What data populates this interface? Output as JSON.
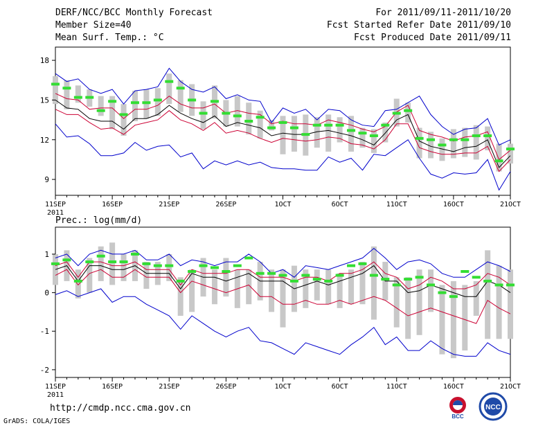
{
  "header": {
    "title": "DERF/NCC/BCC Monthly Forecast",
    "member_size": "Member Size=40",
    "variable_temp": "Mean Surf. Temp.: °C",
    "forecast_period": "For 2011/09/11-2011/10/20",
    "started_date": "Fcst Started Refer Date 2011/09/10",
    "produced_date": "Fcst Produced Date 2011/09/11"
  },
  "footer": {
    "url": "http://cmdp.ncc.cma.gov.cn",
    "credit": "GrADS: COLA/IGES",
    "logo_left_text": "BCC",
    "logo_right_text": "NCC"
  },
  "colors": {
    "max_min": "#0000cc",
    "spread": "#cc0033",
    "mean": "#000000",
    "box": "#c8c8c8",
    "green_mark": "#33dd33"
  },
  "chart_data": [
    {
      "type": "line",
      "title": "Mean Surf. Temp.: °C",
      "x_tick_labels": [
        "11SEP",
        "16SEP",
        "21SEP",
        "26SEP",
        "1OCT",
        "6OCT",
        "11OCT",
        "16OCT",
        "21OCT"
      ],
      "x_year_label": "2011",
      "x_range": [
        0,
        40
      ],
      "ylim": [
        7.8,
        19.0
      ],
      "y_ticks": [
        9,
        12,
        15,
        18
      ],
      "series": [
        {
          "name": "max",
          "values": [
            17.0,
            16.4,
            16.6,
            15.8,
            15.5,
            15.8,
            14.7,
            15.7,
            15.8,
            16.0,
            17.4,
            16.4,
            15.8,
            15.6,
            16.0,
            15.1,
            15.4,
            15.0,
            14.9,
            13.3,
            14.4,
            14.0,
            14.3,
            13.5,
            14.3,
            14.2,
            13.5,
            13.1,
            13.0,
            14.2,
            14.3,
            14.8,
            15.3,
            13.9,
            13.0,
            12.4,
            12.8,
            12.9,
            13.6,
            11.6,
            12.0
          ]
        },
        {
          "name": "upper",
          "values": [
            15.5,
            15.1,
            15.0,
            14.3,
            14.4,
            14.4,
            13.6,
            14.3,
            14.3,
            14.6,
            15.3,
            14.7,
            14.4,
            14.4,
            14.7,
            14.0,
            14.2,
            14.0,
            13.9,
            13.2,
            13.4,
            13.2,
            13.2,
            13.1,
            13.5,
            13.3,
            13.1,
            12.8,
            12.6,
            13.0,
            14.1,
            14.6,
            12.7,
            12.4,
            12.2,
            11.9,
            12.2,
            12.3,
            12.6,
            10.5,
            11.2
          ]
        },
        {
          "name": "mean",
          "values": [
            15.0,
            14.4,
            14.3,
            13.6,
            13.4,
            13.4,
            12.8,
            13.6,
            13.6,
            13.9,
            14.6,
            14.0,
            13.6,
            13.3,
            13.8,
            13.0,
            13.3,
            13.1,
            12.9,
            12.3,
            12.5,
            12.4,
            12.4,
            12.6,
            12.7,
            12.5,
            12.3,
            12.0,
            11.6,
            12.5,
            13.5,
            13.9,
            11.9,
            11.5,
            11.3,
            11.1,
            11.4,
            11.5,
            12.0,
            9.9,
            10.8
          ]
        },
        {
          "name": "lower",
          "values": [
            14.3,
            13.9,
            13.9,
            13.3,
            12.8,
            12.9,
            12.4,
            13.1,
            13.3,
            13.5,
            14.2,
            13.5,
            13.2,
            12.7,
            13.3,
            12.5,
            12.7,
            12.5,
            12.1,
            11.8,
            12.1,
            12.0,
            11.9,
            12.0,
            12.2,
            12.1,
            11.7,
            11.6,
            11.3,
            12.0,
            13.2,
            13.2,
            11.4,
            11.1,
            10.9,
            10.9,
            11.0,
            11.0,
            11.5,
            9.6,
            10.5
          ]
        },
        {
          "name": "min",
          "values": [
            13.2,
            12.2,
            12.3,
            11.7,
            10.8,
            10.8,
            11.0,
            11.8,
            11.2,
            11.5,
            11.6,
            10.7,
            11.0,
            9.8,
            10.4,
            10.1,
            10.4,
            10.1,
            10.3,
            9.9,
            9.8,
            9.8,
            9.7,
            9.7,
            10.7,
            10.3,
            10.6,
            9.7,
            10.9,
            10.8,
            11.4,
            12.0,
            10.6,
            9.4,
            9.1,
            9.5,
            9.4,
            9.5,
            10.5,
            8.2,
            9.6
          ]
        }
      ],
      "box_ranges": [
        [
          14.7,
          16.8
        ],
        [
          14.3,
          16.5
        ],
        [
          14.8,
          16.1
        ],
        [
          14.5,
          15.8
        ],
        [
          13.8,
          15.3
        ],
        [
          12.8,
          15.3
        ],
        [
          12.3,
          14.7
        ],
        [
          13.4,
          15.7
        ],
        [
          13.6,
          15.8
        ],
        [
          13.8,
          15.9
        ],
        [
          14.7,
          17.0
        ],
        [
          14.1,
          16.5
        ],
        [
          13.8,
          16.2
        ],
        [
          12.8,
          14.9
        ],
        [
          13.6,
          16.1
        ],
        [
          13.0,
          15.0
        ],
        [
          13.0,
          15.3
        ],
        [
          12.4,
          14.8
        ],
        [
          12.1,
          14.2
        ],
        [
          12.7,
          13.5
        ],
        [
          10.9,
          13.8
        ],
        [
          11.1,
          13.8
        ],
        [
          10.8,
          13.9
        ],
        [
          11.4,
          13.7
        ],
        [
          11.1,
          13.9
        ],
        [
          11.8,
          13.7
        ],
        [
          11.1,
          13.8
        ],
        [
          11.4,
          12.9
        ],
        [
          11.0,
          12.8
        ],
        [
          11.8,
          13.3
        ],
        [
          13.0,
          15.1
        ],
        [
          13.3,
          14.8
        ],
        [
          10.6,
          12.9
        ],
        [
          10.6,
          12.6
        ],
        [
          10.4,
          12.1
        ],
        [
          10.6,
          12.8
        ],
        [
          10.7,
          12.9
        ],
        [
          10.5,
          13.1
        ],
        [
          11.2,
          13.0
        ],
        [
          9.6,
          11.7
        ],
        [
          10.2,
          11.7
        ]
      ],
      "green_marks": [
        16.2,
        15.9,
        15.2,
        15.2,
        14.2,
        14.9,
        13.9,
        14.8,
        14.8,
        15.0,
        16.4,
        15.9,
        15.0,
        14.0,
        14.9,
        14.0,
        13.8,
        13.4,
        13.7,
        12.9,
        13.3,
        12.9,
        12.4,
        13.1,
        13.1,
        13.1,
        12.7,
        12.5,
        12.3,
        13.1,
        14.0,
        14.2,
        12.1,
        12.0,
        11.6,
        12.0,
        12.0,
        12.3,
        12.3,
        10.4,
        11.3
      ]
    },
    {
      "type": "line",
      "title": "Prec.: log(mm/d)",
      "x_tick_labels": [
        "11SEP",
        "16SEP",
        "21SEP",
        "26SEP",
        "1OCT",
        "6OCT",
        "11OCT",
        "16OCT",
        "21OCT"
      ],
      "x_year_label": "2011",
      "x_range": [
        0,
        40
      ],
      "ylim": [
        -2.2,
        1.7
      ],
      "y_ticks": [
        -2,
        -1,
        0,
        1
      ],
      "series": [
        {
          "name": "max",
          "values": [
            0.9,
            1.0,
            0.7,
            1.0,
            1.1,
            1.0,
            1.0,
            1.1,
            0.85,
            0.85,
            1.0,
            0.7,
            0.85,
            0.8,
            0.7,
            0.8,
            0.8,
            1.0,
            0.8,
            0.5,
            0.6,
            0.4,
            0.7,
            0.65,
            0.6,
            0.7,
            0.8,
            0.9,
            1.15,
            0.9,
            0.6,
            0.8,
            0.85,
            0.75,
            0.5,
            0.4,
            0.4,
            0.6,
            0.8,
            0.7,
            0.55
          ]
        },
        {
          "name": "upper",
          "values": [
            0.7,
            0.8,
            0.4,
            0.8,
            0.8,
            0.7,
            0.7,
            0.8,
            0.6,
            0.6,
            0.6,
            0.2,
            0.6,
            0.5,
            0.5,
            0.5,
            0.6,
            0.6,
            0.4,
            0.4,
            0.4,
            0.3,
            0.4,
            0.4,
            0.3,
            0.5,
            0.5,
            0.6,
            0.8,
            0.5,
            0.4,
            0.1,
            0.2,
            0.4,
            0.3,
            0.1,
            0.1,
            0.2,
            0.5,
            0.4,
            0.2
          ]
        },
        {
          "name": "mean",
          "values": [
            0.6,
            0.7,
            0.3,
            0.7,
            0.7,
            0.6,
            0.6,
            0.7,
            0.5,
            0.5,
            0.5,
            0.1,
            0.5,
            0.4,
            0.4,
            0.3,
            0.4,
            0.5,
            0.3,
            0.3,
            0.3,
            0.1,
            0.2,
            0.3,
            0.2,
            0.3,
            0.4,
            0.5,
            0.7,
            0.3,
            0.3,
            0.0,
            0.05,
            0.2,
            0.1,
            0.0,
            -0.1,
            -0.1,
            0.3,
            0.2,
            0.0
          ]
        },
        {
          "name": "lower",
          "values": [
            0.45,
            0.6,
            0.2,
            0.5,
            0.6,
            0.4,
            0.4,
            0.6,
            0.4,
            0.4,
            0.4,
            0.0,
            0.3,
            0.2,
            0.1,
            0.0,
            0.1,
            0.2,
            -0.1,
            -0.1,
            -0.3,
            -0.3,
            -0.2,
            -0.3,
            -0.3,
            -0.2,
            -0.3,
            -0.2,
            -0.1,
            -0.2,
            -0.4,
            -0.6,
            -0.5,
            -0.4,
            -0.5,
            -0.6,
            -0.7,
            -0.8,
            -0.2,
            -0.4,
            -0.55
          ]
        },
        {
          "name": "min",
          "values": [
            -0.05,
            0.05,
            -0.1,
            0.0,
            0.1,
            -0.25,
            -0.1,
            -0.1,
            -0.3,
            -0.45,
            -0.6,
            -0.95,
            -0.6,
            -0.8,
            -1.0,
            -1.15,
            -1.0,
            -0.9,
            -1.25,
            -1.3,
            -1.45,
            -1.6,
            -1.3,
            -1.4,
            -1.5,
            -1.6,
            -1.35,
            -1.15,
            -0.9,
            -1.35,
            -1.15,
            -1.5,
            -1.5,
            -1.25,
            -1.45,
            -1.6,
            -1.65,
            -1.65,
            -1.3,
            -1.5,
            -1.6
          ]
        }
      ],
      "box_ranges": [
        [
          0.2,
          1.0
        ],
        [
          0.3,
          1.1
        ],
        [
          -0.15,
          0.6
        ],
        [
          0.0,
          0.9
        ],
        [
          0.3,
          1.2
        ],
        [
          0.2,
          1.3
        ],
        [
          0.3,
          1.0
        ],
        [
          0.3,
          1.1
        ],
        [
          0.1,
          0.8
        ],
        [
          0.2,
          0.8
        ],
        [
          0.3,
          1.0
        ],
        [
          -0.6,
          0.4
        ],
        [
          -0.5,
          0.6
        ],
        [
          -0.1,
          0.9
        ],
        [
          -0.3,
          0.6
        ],
        [
          -0.1,
          0.9
        ],
        [
          -0.4,
          0.6
        ],
        [
          -0.3,
          0.6
        ],
        [
          -0.2,
          0.8
        ],
        [
          -0.5,
          0.6
        ],
        [
          -0.9,
          0.6
        ],
        [
          -0.5,
          0.7
        ],
        [
          -0.4,
          0.6
        ],
        [
          -0.2,
          0.6
        ],
        [
          -0.3,
          0.6
        ],
        [
          -0.4,
          0.5
        ],
        [
          -0.3,
          0.6
        ],
        [
          -0.3,
          0.8
        ],
        [
          -0.7,
          1.2
        ],
        [
          -0.2,
          0.8
        ],
        [
          -0.9,
          0.4
        ],
        [
          -1.2,
          0.4
        ],
        [
          -1.1,
          0.6
        ],
        [
          -0.5,
          0.6
        ],
        [
          -1.6,
          0.2
        ],
        [
          -1.7,
          0.3
        ],
        [
          -1.5,
          0.2
        ],
        [
          -0.6,
          0.3
        ],
        [
          -1.2,
          1.1
        ],
        [
          -1.2,
          0.7
        ],
        [
          -1.2,
          0.6
        ]
      ],
      "green_marks": [
        0.75,
        0.85,
        0.3,
        0.8,
        0.95,
        0.8,
        0.8,
        1.0,
        0.75,
        0.7,
        0.7,
        0.3,
        0.55,
        0.7,
        0.65,
        0.55,
        0.7,
        0.9,
        0.5,
        0.5,
        0.45,
        0.3,
        0.45,
        0.35,
        0.3,
        0.45,
        0.7,
        0.75,
        0.45,
        0.35,
        0.2,
        0.35,
        0.4,
        0.2,
        0.0,
        -0.1,
        0.55,
        0.4,
        0.3,
        0.2,
        0.2
      ]
    }
  ]
}
